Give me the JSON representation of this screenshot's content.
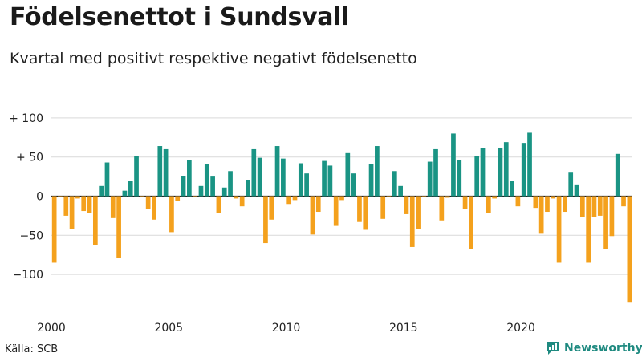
{
  "header": {
    "title": "Födelsenettot i Sundsvall",
    "subtitle": "Kvartal med positivt respektive negativt födelsenetto"
  },
  "footer": {
    "source": "Källa: SCB",
    "brand": "Newsworthy",
    "brand_icon": "newsworthy-logo-icon"
  },
  "colors": {
    "positive": "#1a9484",
    "negative": "#f4a11d",
    "grid": "#d9d9d9",
    "axis": "#222222"
  },
  "chart_data": {
    "type": "bar",
    "title": "Födelsenettot i Sundsvall",
    "subtitle": "Kvartal med positivt respektive negativt födelsenetto",
    "xlabel": "",
    "ylabel": "",
    "x_start": 2000,
    "periods_per_year": 4,
    "xticks": [
      2000,
      2005,
      2010,
      2015,
      2020
    ],
    "yticks": [
      -100,
      -50,
      0,
      50,
      100
    ],
    "ytick_labels": [
      "−100",
      "−50",
      "0",
      "+  50",
      "+ 100"
    ],
    "ylim": [
      -140,
      105
    ],
    "grid": true,
    "values": [
      -85,
      -1,
      -25,
      -42,
      -3,
      -19,
      -21,
      -63,
      13,
      43,
      -28,
      -79,
      7,
      19,
      51,
      -1,
      -16,
      -30,
      64,
      60,
      -46,
      -6,
      26,
      46,
      -1,
      13,
      41,
      25,
      -22,
      11,
      32,
      -3,
      -13,
      21,
      60,
      49,
      -60,
      -30,
      64,
      48,
      -10,
      -5,
      42,
      29,
      -49,
      -20,
      45,
      39,
      -38,
      -5,
      55,
      29,
      -33,
      -43,
      41,
      64,
      -29,
      -1,
      32,
      13,
      -23,
      -65,
      -42,
      -1,
      44,
      60,
      -31,
      -2,
      80,
      46,
      -16,
      -68,
      51,
      61,
      -22,
      -3,
      62,
      69,
      19,
      -13,
      68,
      81,
      -15,
      -48,
      -20,
      -3,
      -85,
      -20,
      30,
      15,
      -27,
      -85,
      -27,
      -25,
      -68,
      -51,
      54,
      -13,
      -136
    ]
  }
}
